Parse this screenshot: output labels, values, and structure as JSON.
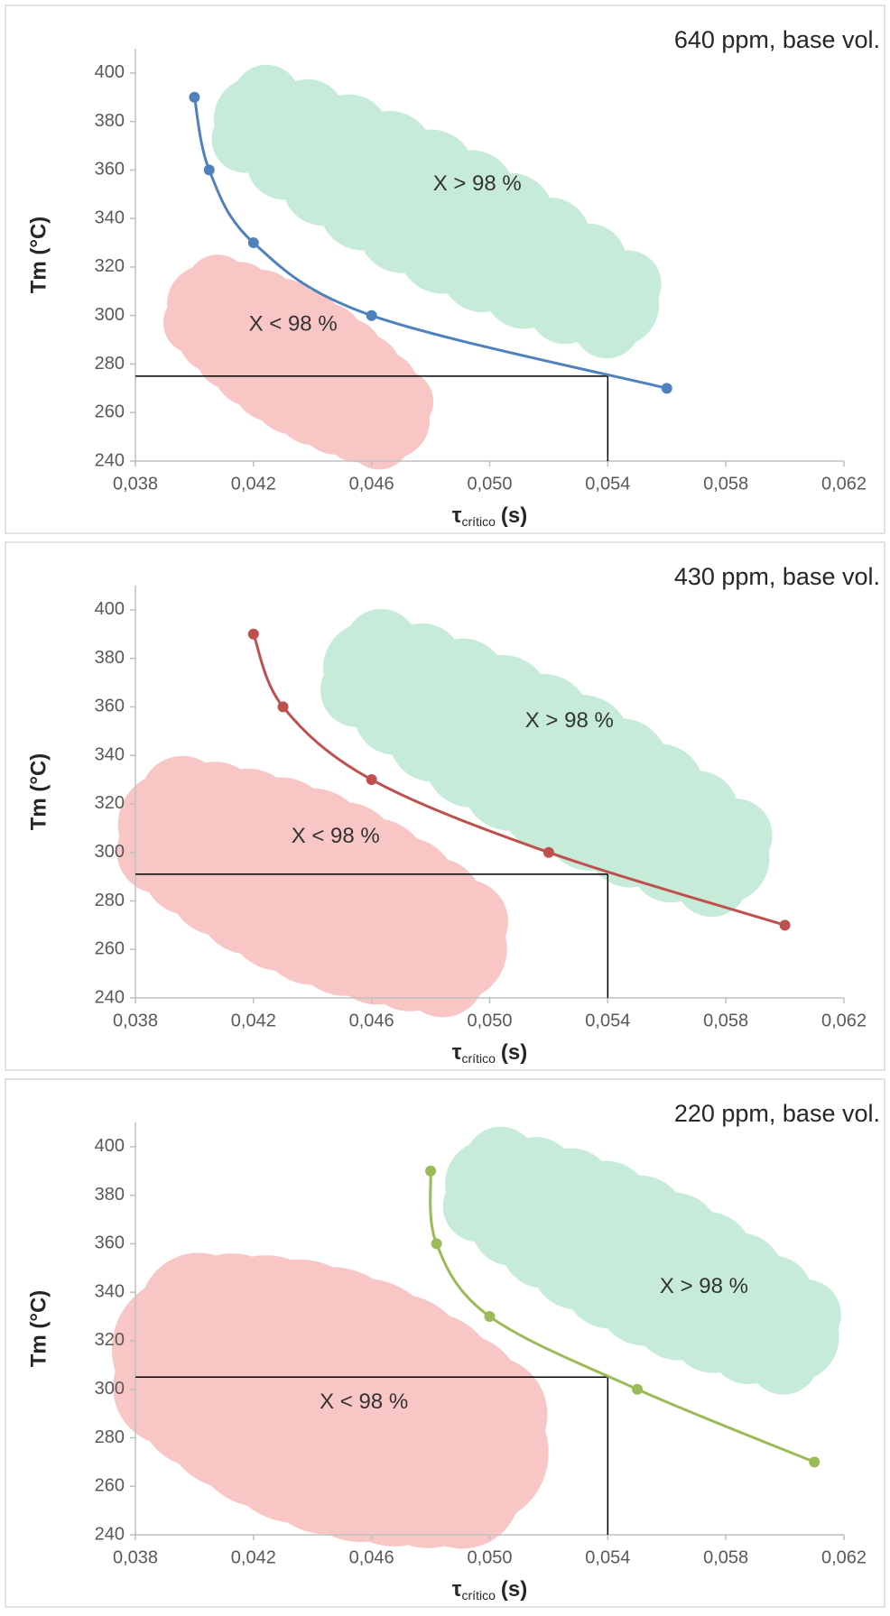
{
  "chart_data": [
    {
      "type": "line",
      "title": "640 ppm, base vol.",
      "ylabel": "Tm (°C)",
      "xlabel": {
        "symbol": "τ",
        "subscript": "crítico",
        "unit": "(s)"
      },
      "x": [
        0.04,
        0.0405,
        0.042,
        0.046,
        0.056
      ],
      "values": [
        390,
        360,
        330,
        300,
        270
      ],
      "color": "#4f81bd",
      "xlim": [
        0.038,
        0.062
      ],
      "ylim": [
        240,
        410
      ],
      "xticks": [
        {
          "value": 0.038,
          "label": "0,038"
        },
        {
          "value": 0.042,
          "label": "0,042"
        },
        {
          "value": 0.046,
          "label": "0,046"
        },
        {
          "value": 0.05,
          "label": "0,050"
        },
        {
          "value": 0.054,
          "label": "0,054"
        },
        {
          "value": 0.058,
          "label": "0,058"
        },
        {
          "value": 0.062,
          "label": "0,062"
        }
      ],
      "yticks": [
        240,
        260,
        280,
        300,
        320,
        340,
        360,
        380,
        400
      ],
      "annotations": [
        {
          "text": "X > 98 %",
          "color": "#c6ecd9"
        },
        {
          "text": "X < 98 %",
          "color": "#f9c6c6"
        }
      ],
      "reference": {
        "x": 0.054,
        "y": 275,
        "color": "#000000"
      }
    },
    {
      "type": "line",
      "title": "430 ppm, base vol.",
      "ylabel": "Tm (°C)",
      "xlabel": {
        "symbol": "τ",
        "subscript": "crítico",
        "unit": "(s)"
      },
      "x": [
        0.042,
        0.043,
        0.046,
        0.052,
        0.06
      ],
      "values": [
        390,
        360,
        330,
        300,
        270
      ],
      "color": "#c0504d",
      "xlim": [
        0.038,
        0.062
      ],
      "ylim": [
        240,
        410
      ],
      "xticks": [
        {
          "value": 0.038,
          "label": "0,038"
        },
        {
          "value": 0.042,
          "label": "0,042"
        },
        {
          "value": 0.046,
          "label": "0,046"
        },
        {
          "value": 0.05,
          "label": "0,050"
        },
        {
          "value": 0.054,
          "label": "0,054"
        },
        {
          "value": 0.058,
          "label": "0,058"
        },
        {
          "value": 0.062,
          "label": "0,062"
        }
      ],
      "yticks": [
        240,
        260,
        280,
        300,
        320,
        340,
        360,
        380,
        400
      ],
      "annotations": [
        {
          "text": "X > 98 %",
          "color": "#c6ecd9"
        },
        {
          "text": "X < 98 %",
          "color": "#f9c6c6"
        }
      ],
      "reference": {
        "x": 0.054,
        "y": 291,
        "color": "#000000"
      }
    },
    {
      "type": "line",
      "title": "220 ppm, base vol.",
      "ylabel": "Tm (°C)",
      "xlabel": {
        "symbol": "τ",
        "subscript": "crítico",
        "unit": "(s)"
      },
      "x": [
        0.048,
        0.0482,
        0.05,
        0.055,
        0.061
      ],
      "values": [
        390,
        360,
        330,
        300,
        270
      ],
      "color": "#9bbb59",
      "xlim": [
        0.038,
        0.062
      ],
      "ylim": [
        240,
        410
      ],
      "xticks": [
        {
          "value": 0.038,
          "label": "0,038"
        },
        {
          "value": 0.042,
          "label": "0,042"
        },
        {
          "value": 0.046,
          "label": "0,046"
        },
        {
          "value": 0.05,
          "label": "0,050"
        },
        {
          "value": 0.054,
          "label": "0,054"
        },
        {
          "value": 0.058,
          "label": "0,058"
        },
        {
          "value": 0.062,
          "label": "0,062"
        }
      ],
      "yticks": [
        240,
        260,
        280,
        300,
        320,
        340,
        360,
        380,
        400
      ],
      "annotations": [
        {
          "text": "X > 98 %",
          "color": "#c6ecd9"
        },
        {
          "text": "X < 98 %",
          "color": "#f9c6c6"
        }
      ],
      "reference": {
        "x": 0.054,
        "y": 305,
        "color": "#000000"
      }
    }
  ]
}
